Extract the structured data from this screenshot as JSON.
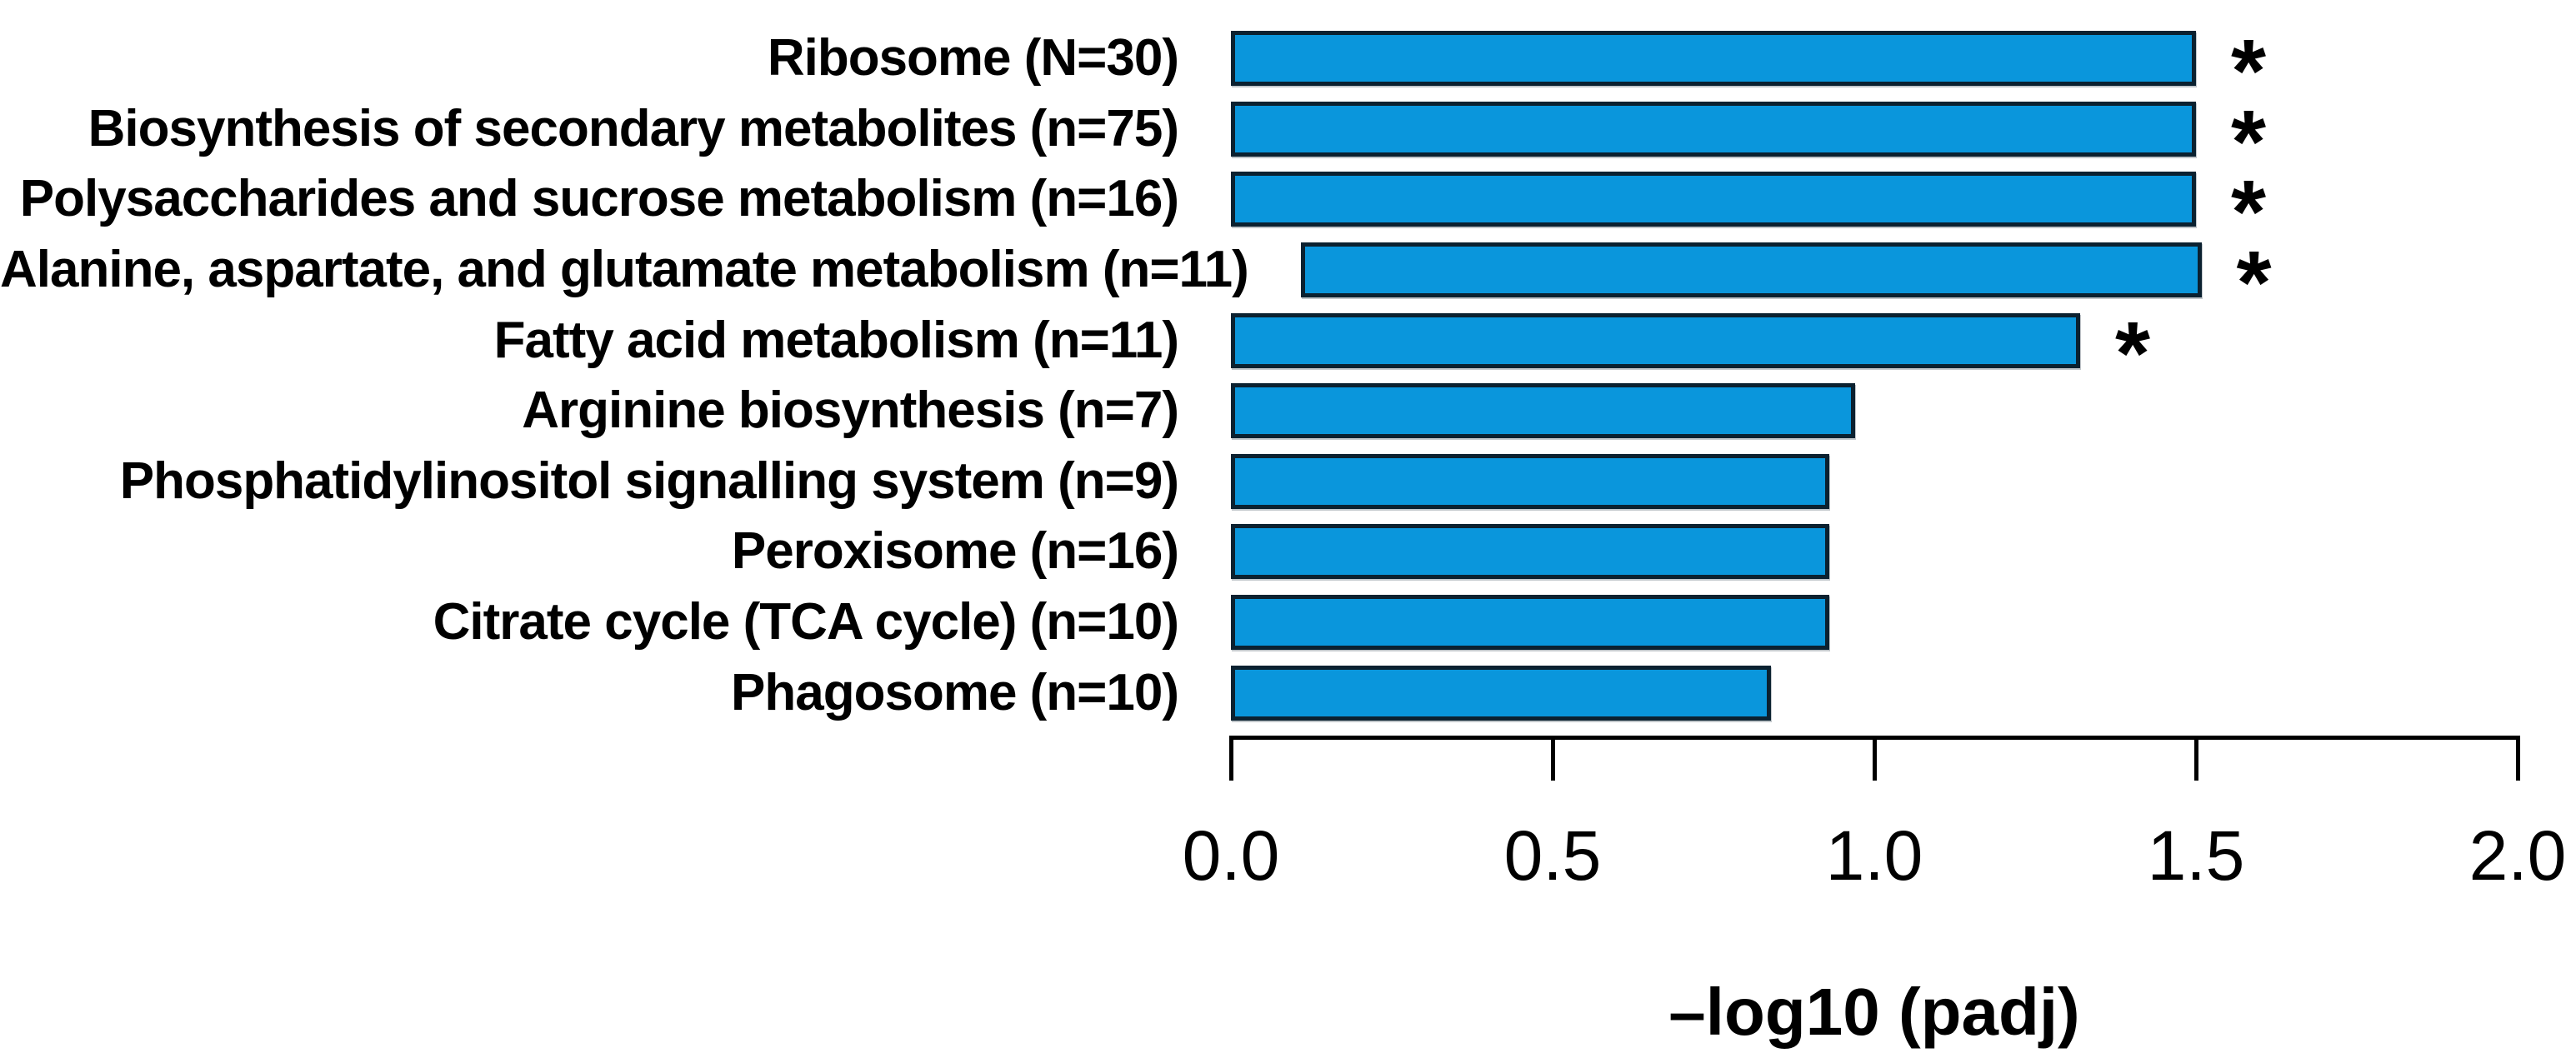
{
  "chart_data": {
    "type": "bar",
    "orientation": "horizontal",
    "title": "",
    "xlabel": "–log10 (padj)",
    "ylabel": "",
    "xlim": [
      0.0,
      2.0
    ],
    "xtick_labels": [
      "0.0",
      "0.5",
      "1.0",
      "1.5",
      "2.0"
    ],
    "grid": false,
    "legend": false,
    "bar_fill_color": "#0a96dc",
    "bar_border_color": "#0b2130",
    "axis_color": "#000000",
    "text_color": "#000000",
    "significance_marker": "*",
    "categories": [
      "Ribosome (N=30)",
      "Biosynthesis of secondary metabolites (n=75)",
      "Polysaccharides and sucrose metabolism (n=16)",
      "Alanine, aspartate, and glutamate metabolism (n=11)",
      "Fatty acid metabolism (n=11)",
      "Arginine biosynthesis (n=7)",
      "Phosphatidylinositol signalling system (n=9)",
      "Peroxisome (n=16)",
      "Citrate cycle (TCA cycle) (n=10)",
      "Phagosome (n=10)"
    ],
    "values": [
      1.5,
      1.5,
      1.5,
      1.4,
      1.32,
      0.97,
      0.93,
      0.93,
      0.93,
      0.84
    ],
    "significant": [
      true,
      true,
      true,
      true,
      true,
      false,
      false,
      false,
      false,
      false
    ]
  }
}
